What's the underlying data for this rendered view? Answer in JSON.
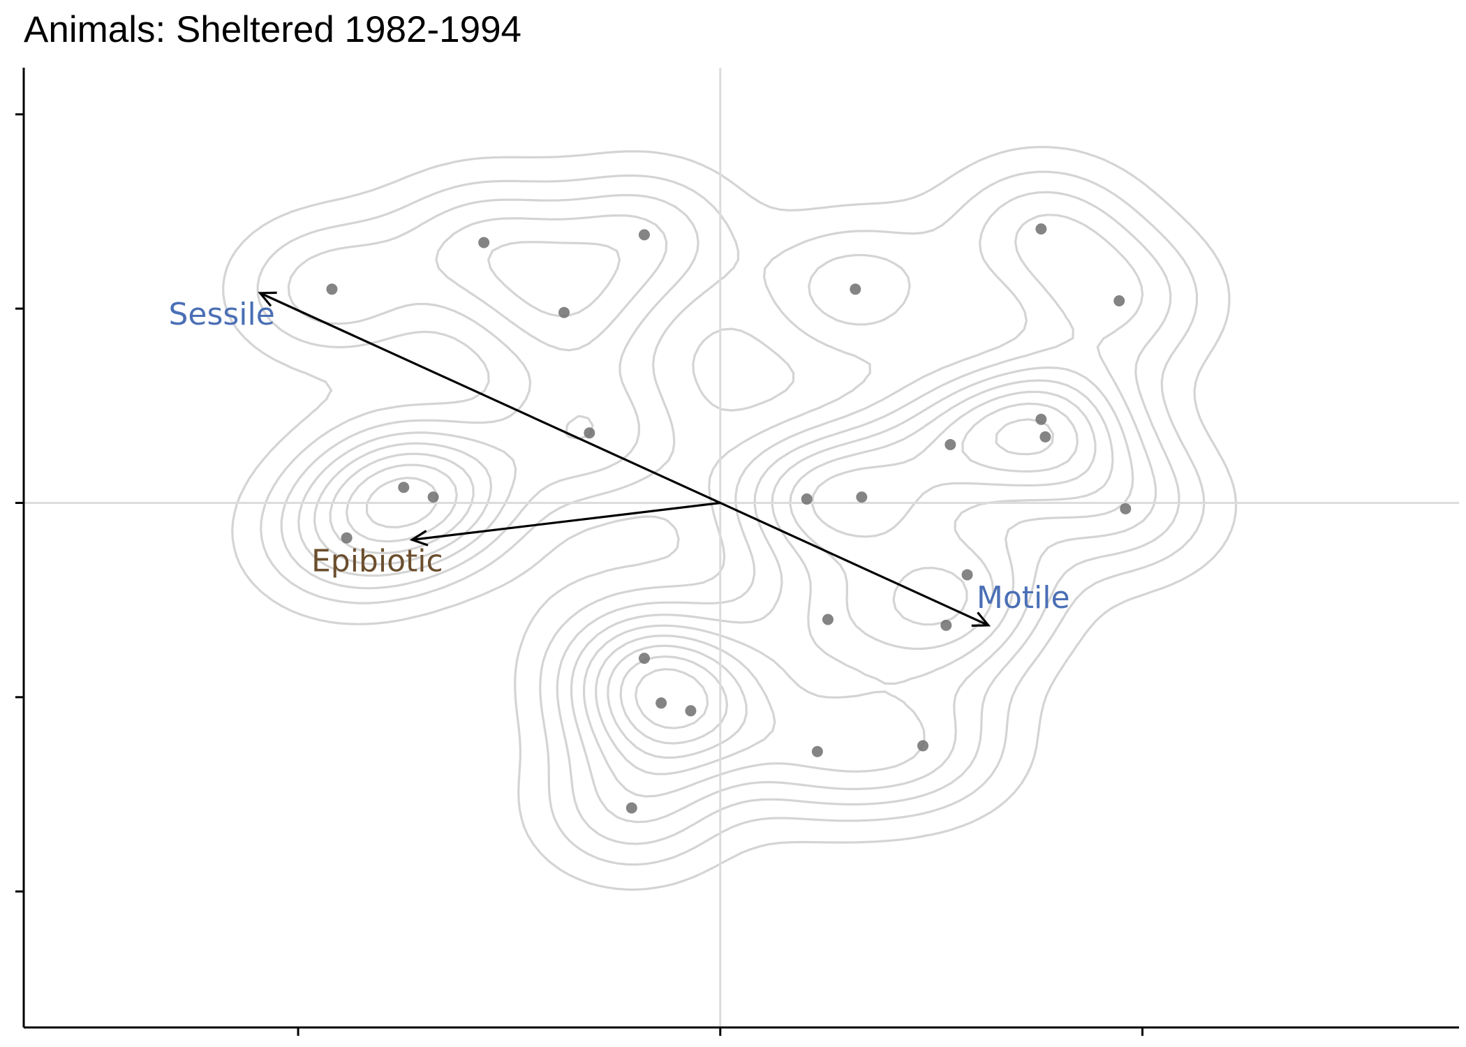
{
  "chart_data": {
    "type": "scatter",
    "title": "Animals: Sheltered 1982-1994",
    "xlabel": "",
    "ylabel": "",
    "xlim": [
      -1.65,
      1.75
    ],
    "ylim": [
      -1.35,
      1.12
    ],
    "x_ticks": [
      -1,
      0,
      1
    ],
    "y_ticks": [
      -1,
      -0.5,
      0,
      0.5,
      1
    ],
    "tick_labels_shown": false,
    "grid": false,
    "zero_lines": true,
    "legend": "none",
    "colors": {
      "points": "#6e6e6e",
      "contours": "#d4d4d4",
      "zero_lines": "#dcdcdc",
      "axes": "#000000",
      "arrows": "#000000",
      "sessile": "#4a6fb5",
      "motile": "#4a6fb5",
      "epibiotic": "#6b4e2e"
    },
    "points": [
      {
        "x": -0.92,
        "y": 0.55
      },
      {
        "x": -0.56,
        "y": 0.67
      },
      {
        "x": -0.37,
        "y": 0.49
      },
      {
        "x": -0.18,
        "y": 0.69
      },
      {
        "x": -0.31,
        "y": 0.18
      },
      {
        "x": -0.75,
        "y": 0.04
      },
      {
        "x": -0.68,
        "y": 0.015
      },
      {
        "x": -0.885,
        "y": -0.09
      },
      {
        "x": 0.32,
        "y": 0.55
      },
      {
        "x": 0.76,
        "y": 0.705
      },
      {
        "x": 0.945,
        "y": 0.52
      },
      {
        "x": 0.76,
        "y": 0.215
      },
      {
        "x": 0.77,
        "y": 0.17
      },
      {
        "x": 0.545,
        "y": 0.15
      },
      {
        "x": 0.205,
        "y": 0.01
      },
      {
        "x": 0.335,
        "y": 0.015
      },
      {
        "x": 0.96,
        "y": -0.015
      },
      {
        "x": 0.585,
        "y": -0.185
      },
      {
        "x": 0.255,
        "y": -0.3
      },
      {
        "x": 0.535,
        "y": -0.315
      },
      {
        "x": -0.18,
        "y": -0.4
      },
      {
        "x": -0.14,
        "y": -0.515
      },
      {
        "x": -0.07,
        "y": -0.535
      },
      {
        "x": 0.23,
        "y": -0.64
      },
      {
        "x": 0.48,
        "y": -0.625
      },
      {
        "x": -0.21,
        "y": -0.785
      }
    ],
    "vectors": [
      {
        "name": "Sessile",
        "x": -1.09,
        "y": 0.54
      },
      {
        "name": "Motile",
        "x": 0.635,
        "y": -0.315
      },
      {
        "name": "Epibiotic",
        "x": -0.73,
        "y": -0.095
      }
    ],
    "density_contours": 9
  }
}
